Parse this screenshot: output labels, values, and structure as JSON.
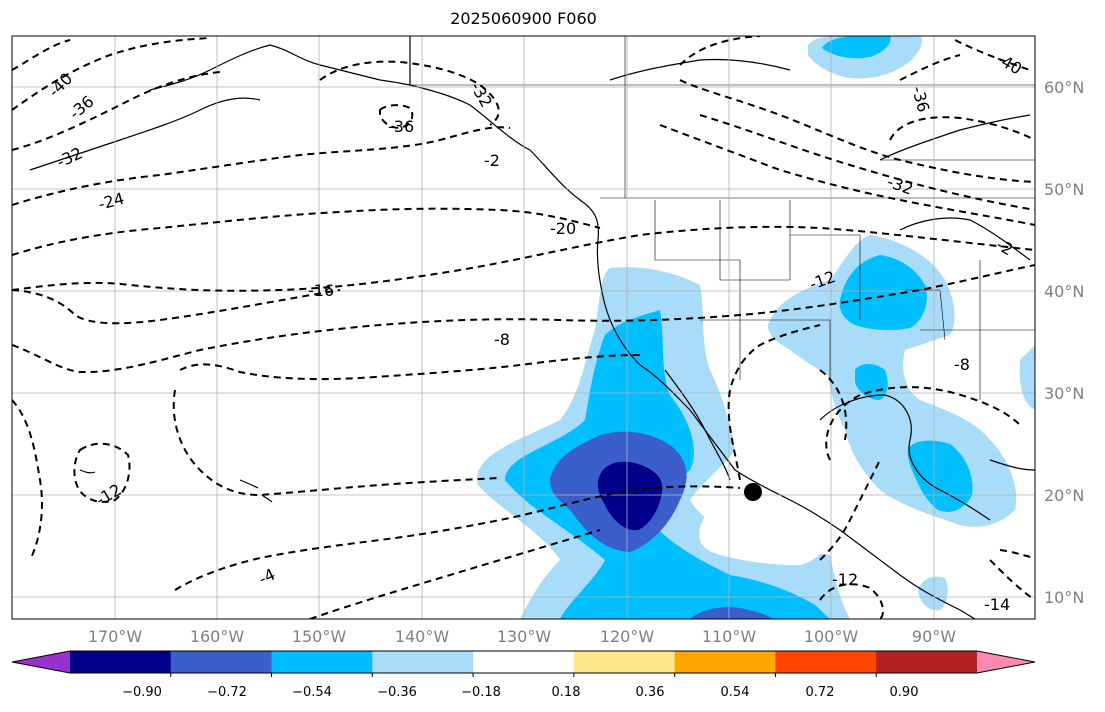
{
  "title": "2025060900 F060",
  "map": {
    "lat_labels": [
      "60°N",
      "50°N",
      "40°N",
      "30°N",
      "20°N",
      "10°N"
    ],
    "lon_labels": [
      "170°W",
      "160°W",
      "150°W",
      "140°W",
      "130°W",
      "120°W",
      "110°W",
      "100°W",
      "90°W"
    ],
    "contour_labels": [
      "-40",
      "-36",
      "-32",
      "-24",
      "-36",
      "-32",
      "-2",
      "-20",
      "-16",
      "-8",
      "-12",
      "-4",
      "-12",
      "-12",
      "-36",
      "-32",
      "-2",
      "-8",
      "-14",
      "-40"
    ],
    "contour_style": "dashed black"
  },
  "colorbar": {
    "tick_labels": [
      "−0.90",
      "−0.72",
      "−0.54",
      "−0.36",
      "−0.18",
      "0.18",
      "0.36",
      "0.54",
      "0.72",
      "0.90"
    ],
    "colors": [
      "#9b30d0",
      "#00008b",
      "#3a5fcd",
      "#00bfff",
      "#a8dcf8",
      "#ffffff",
      "#ffe88a",
      "#ffa500",
      "#ff4500",
      "#b22222",
      "#ff88b0"
    ]
  }
}
